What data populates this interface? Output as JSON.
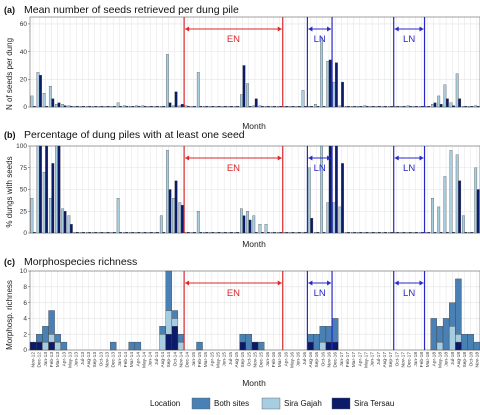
{
  "colors": {
    "both_sites": "#4a81b4",
    "sira_gajah": "#a7cde0",
    "sira_tersau": "#0c1a6a",
    "en": "#d9272a",
    "ln": "#2828c8",
    "grid": "#e3e3e3",
    "panel_border": "#7a7a7a"
  },
  "months": [
    "Nov-12",
    "Dec-12",
    "Jan-13",
    "Feb-13",
    "Mar-13",
    "Apr-13",
    "May-13",
    "Jun-13",
    "Jul-13",
    "Aug-13",
    "Sep-13",
    "Oct-13",
    "Nov-13",
    "Dec-13",
    "Jan-14",
    "Feb-14",
    "Mar-14",
    "Apr-14",
    "May-14",
    "Jun-14",
    "Jul-14",
    "Aug-14",
    "Sep-14",
    "Oct-14",
    "Nov-14",
    "Dec-14",
    "Jan-15",
    "Feb-15",
    "Mar-15",
    "Apr-15",
    "May-15",
    "Jun-15",
    "Jul-15",
    "Aug-15",
    "Sep-15",
    "Oct-15",
    "Nov-15",
    "Dec-15",
    "Jan-16",
    "Feb-16",
    "Mar-16",
    "Apr-16",
    "May-16",
    "Jun-16",
    "Jul-16",
    "Aug-16",
    "Sep-16",
    "Oct-16",
    "Nov-16",
    "Dec-16",
    "Jan-17",
    "Feb-17",
    "Mar-17",
    "Apr-17",
    "May-17",
    "Jun-17",
    "Jul-17",
    "Aug-17",
    "Sep-17",
    "Oct-17",
    "Nov-17",
    "Dec-17",
    "Jan-18",
    "Feb-18",
    "Mar-18",
    "Apr-18",
    "May-18",
    "Jun-18",
    "Jul-18",
    "Aug-18",
    "Sep-18",
    "Oct-18",
    "Nov-18"
  ],
  "x_axis_title": "Month",
  "legend": {
    "title": "Location",
    "items": [
      {
        "label": "Both sites",
        "color_key": "both_sites"
      },
      {
        "label": "Sira Gajah",
        "color_key": "sira_gajah"
      },
      {
        "label": "Sira Tersau",
        "color_key": "sira_tersau"
      }
    ]
  },
  "chart_data": [
    {
      "type": "bar",
      "panel_label": "(a)",
      "title": "Mean number of seeds retrieved per dung pile",
      "ylabel": "N of seeds per dung",
      "xlabel": "Month",
      "ylim": [
        0,
        65
      ],
      "yticks": [
        0,
        20,
        40,
        60
      ],
      "tick_labels_shown": false,
      "events": [
        {
          "label": "EN",
          "color_key": "en",
          "start": "Dec-14",
          "end": "Apr-16",
          "kind": "box"
        },
        {
          "label": "LN",
          "color_key": "ln",
          "start": "Aug-16",
          "end": "Dec-16",
          "kind": "box"
        },
        {
          "label": "LN",
          "color_key": "ln",
          "start": "Oct-17",
          "end": "Mar-18",
          "kind": "box"
        }
      ],
      "series": [
        {
          "name": "Sira Gajah",
          "color_key": "sira_gajah",
          "values": [
            8,
            25,
            10,
            15,
            2,
            2,
            1,
            0,
            0,
            0,
            0,
            0,
            0,
            0,
            3,
            1,
            0,
            1,
            1,
            0,
            0,
            0,
            38,
            1,
            1,
            1,
            0,
            25,
            0,
            0,
            0,
            0,
            0,
            0,
            9,
            17,
            1,
            1,
            0,
            0,
            0,
            0,
            0,
            0,
            12,
            0,
            2,
            50,
            33,
            18,
            1,
            0,
            0,
            0,
            1,
            0,
            0,
            0,
            0,
            0,
            0,
            1,
            0,
            0,
            0,
            2,
            8,
            16,
            3,
            24,
            0,
            0,
            1
          ]
        },
        {
          "name": "Sira Tersau",
          "color_key": "sira_tersau",
          "values": [
            0,
            23,
            0,
            6,
            3,
            1,
            0,
            0,
            0,
            0,
            0,
            0,
            0,
            0,
            0,
            0,
            0,
            0,
            0,
            0,
            0,
            0,
            3,
            11,
            2,
            0,
            0,
            0,
            0,
            0,
            0,
            0,
            0,
            0,
            30,
            0,
            6,
            0,
            0,
            0,
            0,
            0,
            0,
            0,
            0,
            0,
            0,
            0,
            34,
            32,
            18,
            0,
            0,
            0,
            0,
            0,
            0,
            0,
            0,
            0,
            0,
            0,
            0,
            0,
            0,
            3,
            2,
            6,
            1,
            6,
            0,
            0,
            0
          ]
        }
      ]
    },
    {
      "type": "bar",
      "panel_label": "(b)",
      "title": "Percentage of dung piles with at least one seed",
      "ylabel": "% dungs with seeds",
      "xlabel": "Month",
      "ylim": [
        0,
        100
      ],
      "yticks": [
        0,
        25,
        50,
        75,
        100
      ],
      "tick_labels_shown": false,
      "events": [
        {
          "label": "EN",
          "color_key": "en",
          "start": "Dec-14",
          "end": "Apr-16",
          "kind": "box"
        },
        {
          "label": "LN",
          "color_key": "ln",
          "start": "Aug-16",
          "end": "Dec-16",
          "kind": "box"
        },
        {
          "label": "LN",
          "color_key": "ln",
          "start": "Oct-17",
          "end": "Mar-18",
          "kind": "box"
        }
      ],
      "series": [
        {
          "name": "Sira Gajah",
          "color_key": "sira_gajah",
          "values": [
            40,
            100,
            70,
            40,
            100,
            28,
            20,
            0,
            0,
            0,
            0,
            0,
            0,
            0,
            40,
            0,
            0,
            0,
            0,
            0,
            0,
            20,
            95,
            40,
            35,
            1,
            0,
            25,
            0,
            0,
            0,
            0,
            0,
            0,
            28,
            25,
            20,
            10,
            10,
            0,
            0,
            0,
            0,
            0,
            0,
            75,
            0,
            100,
            35,
            35,
            30,
            0,
            0,
            0,
            0,
            0,
            0,
            0,
            0,
            0,
            0,
            1,
            0,
            0,
            0,
            40,
            30,
            65,
            95,
            90,
            20,
            0,
            75
          ]
        },
        {
          "name": "Sira Tersau",
          "color_key": "sira_tersau",
          "values": [
            0,
            100,
            100,
            80,
            100,
            25,
            10,
            0,
            0,
            0,
            0,
            0,
            0,
            0,
            0,
            0,
            0,
            0,
            0,
            0,
            0,
            0,
            50,
            60,
            32,
            0,
            0,
            0,
            0,
            0,
            0,
            0,
            0,
            0,
            20,
            15,
            0,
            0,
            0,
            0,
            0,
            0,
            0,
            0,
            0,
            17,
            0,
            0,
            100,
            100,
            80,
            0,
            0,
            0,
            0,
            0,
            0,
            0,
            0,
            0,
            0,
            0,
            0,
            0,
            0,
            0,
            0,
            0,
            0,
            60,
            0,
            0,
            50
          ]
        }
      ]
    },
    {
      "type": "bar",
      "stacked": true,
      "panel_label": "(c)",
      "title": "Morphospecies richness",
      "ylabel": "Morphosp. richness",
      "xlabel": "Month",
      "ylim": [
        0,
        10
      ],
      "yticks": [
        0,
        2,
        4,
        6,
        8,
        10
      ],
      "events": [
        {
          "label": "EN",
          "color_key": "en",
          "start": "Dec-14",
          "end": "Apr-16",
          "kind": "box"
        },
        {
          "label": "LN",
          "color_key": "ln",
          "start": "Aug-16",
          "end": "Dec-16",
          "kind": "box"
        },
        {
          "label": "LN",
          "color_key": "ln",
          "start": "Oct-17",
          "end": "Mar-18",
          "kind": "box"
        }
      ],
      "series": [
        {
          "name": "Sira Tersau",
          "color_key": "sira_tersau",
          "values": [
            1,
            1,
            0,
            1,
            0,
            0,
            0,
            0,
            0,
            0,
            0,
            0,
            0,
            0,
            0,
            0,
            0,
            0,
            0,
            0,
            0,
            0,
            2,
            3,
            0,
            0,
            0,
            0,
            0,
            0,
            0,
            0,
            0,
            0,
            1,
            0,
            1,
            0,
            0,
            0,
            0,
            0,
            0,
            0,
            0,
            1,
            0,
            0,
            1,
            1,
            0,
            0,
            0,
            0,
            0,
            0,
            0,
            0,
            0,
            0,
            0,
            0,
            0,
            0,
            0,
            0,
            0,
            0,
            0,
            1,
            0,
            0,
            0
          ]
        },
        {
          "name": "Sira Gajah",
          "color_key": "sira_gajah",
          "values": [
            0,
            0,
            1,
            1,
            1,
            0,
            0,
            0,
            0,
            0,
            0,
            0,
            0,
            0,
            0,
            0,
            0,
            0,
            0,
            0,
            0,
            2,
            3,
            1,
            1,
            0,
            0,
            0,
            0,
            0,
            0,
            0,
            0,
            0,
            0,
            0,
            0,
            0,
            0,
            0,
            0,
            0,
            0,
            0,
            0,
            0,
            0,
            1,
            0,
            0,
            0,
            0,
            0,
            0,
            0,
            0,
            0,
            0,
            0,
            0,
            0,
            0,
            0,
            0,
            0,
            0,
            1,
            0,
            3,
            1,
            0,
            0,
            0
          ]
        },
        {
          "name": "Both sites",
          "color_key": "both_sites",
          "values": [
            0,
            1,
            2,
            3,
            1,
            1,
            0,
            0,
            0,
            0,
            0,
            0,
            0,
            1,
            0,
            0,
            1,
            1,
            0,
            0,
            0,
            1,
            5,
            1,
            1,
            0,
            0,
            1,
            0,
            0,
            0,
            0,
            0,
            0,
            1,
            2,
            0,
            1,
            0,
            0,
            0,
            0,
            0,
            0,
            0,
            1,
            2,
            2,
            2,
            3,
            0,
            0,
            0,
            0,
            0,
            0,
            0,
            0,
            0,
            0,
            0,
            0,
            0,
            0,
            0,
            4,
            2,
            4,
            3,
            7,
            2,
            2,
            1
          ]
        }
      ]
    }
  ]
}
